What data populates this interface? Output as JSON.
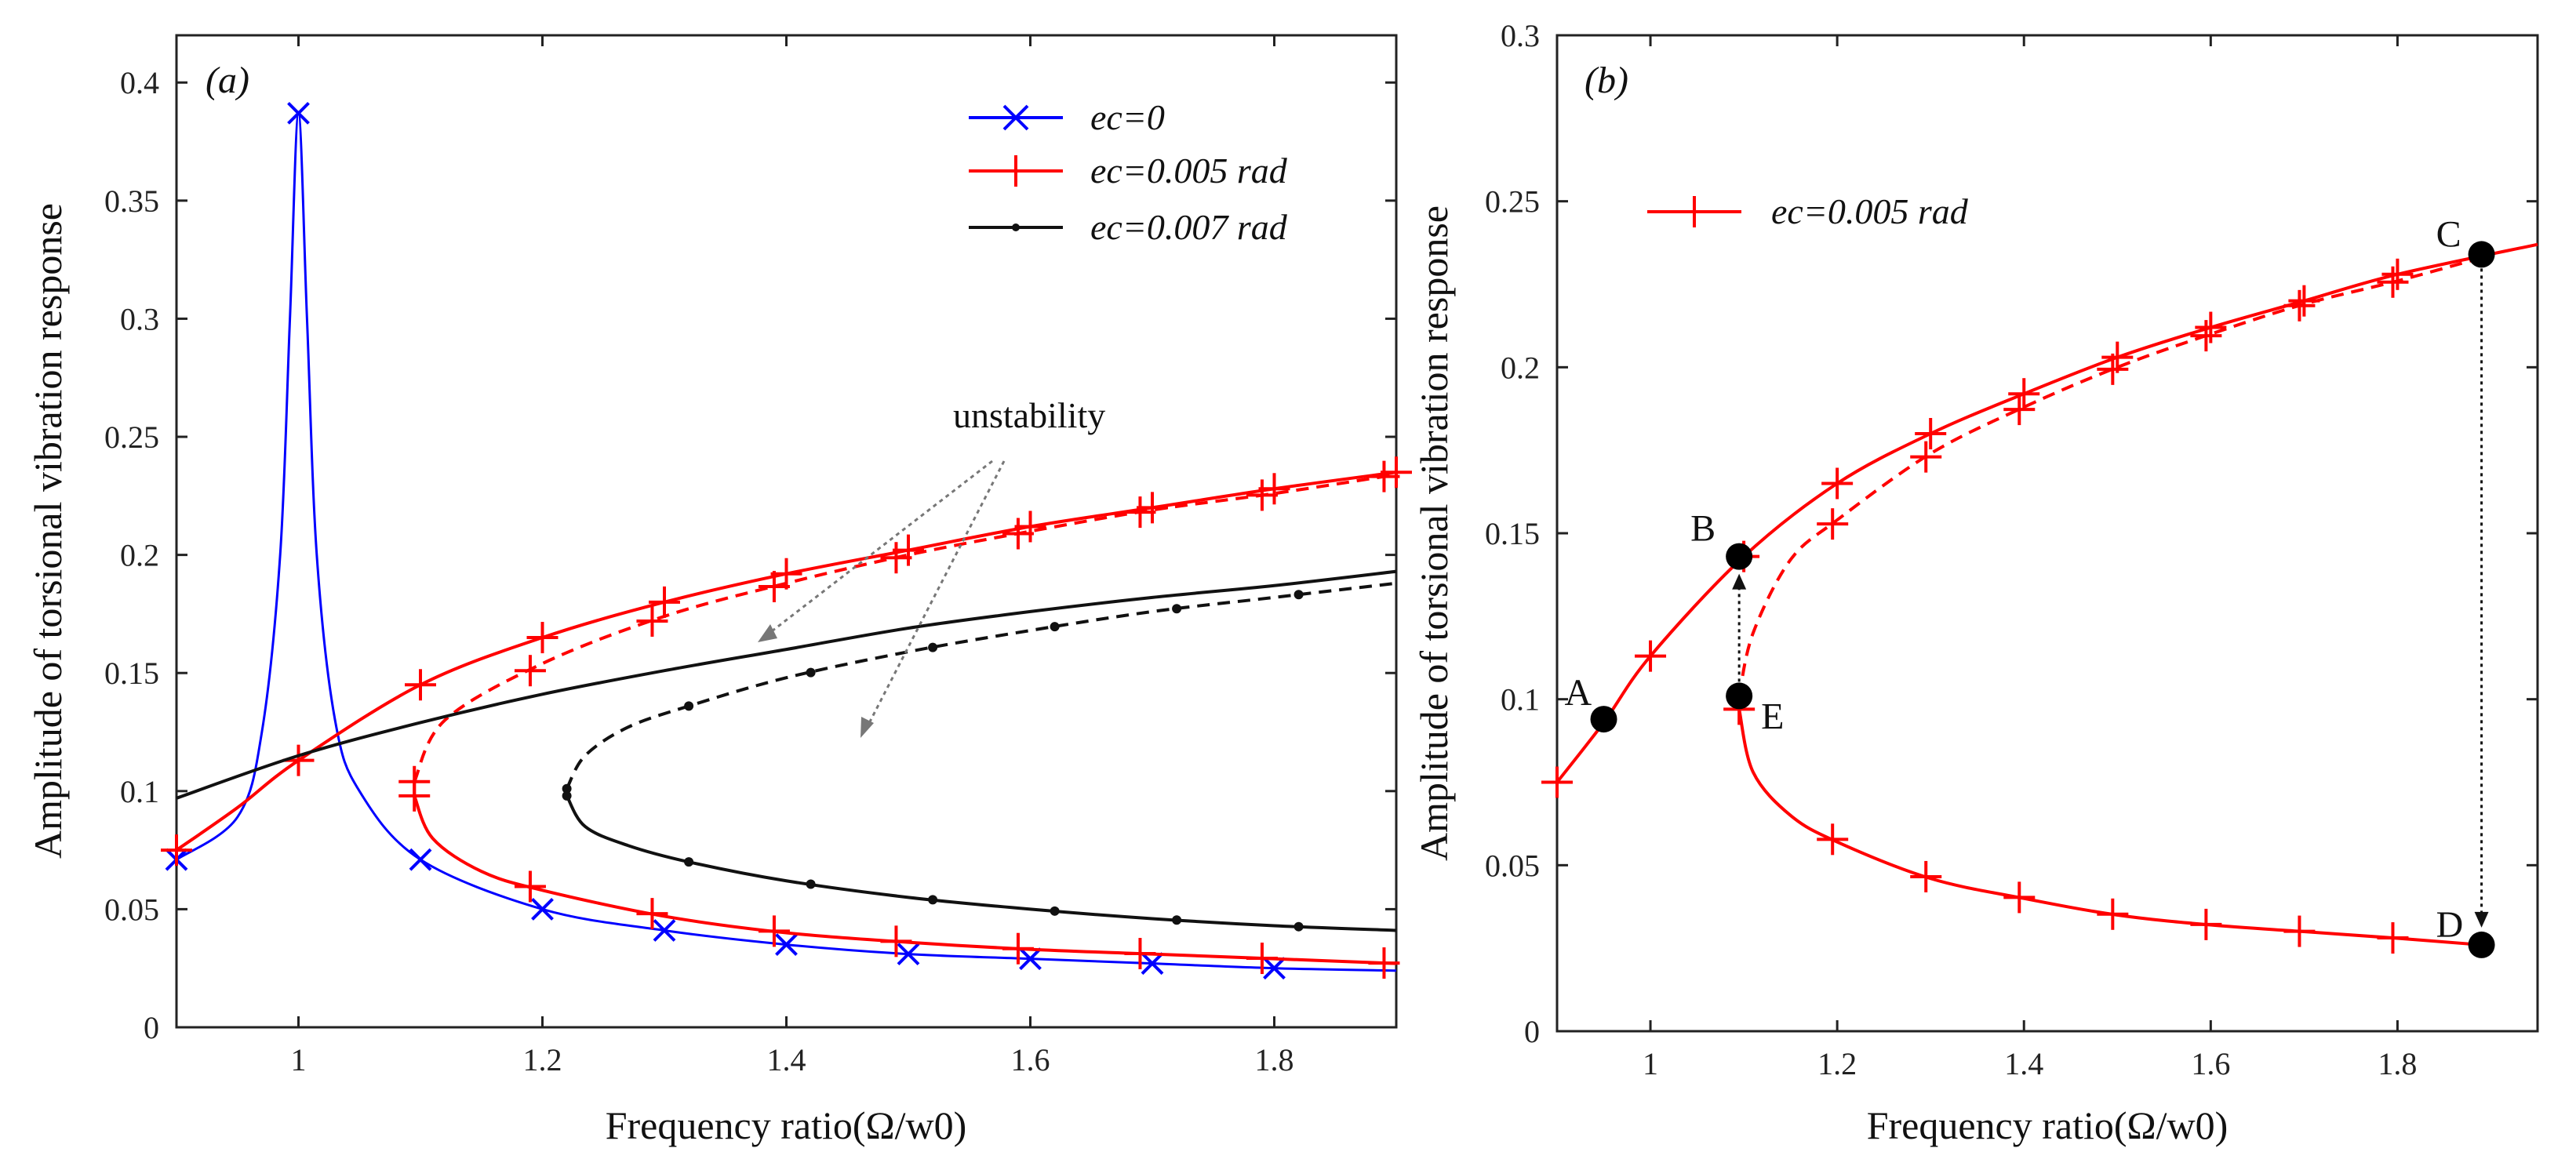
{
  "chart_data": [
    {
      "panel": "(a)",
      "type": "line",
      "xlabel": "Frequency ratio(Ω/w0)",
      "ylabel": "Amplitude of torsional vibration response",
      "xlim": [
        0.9,
        1.9
      ],
      "ylim": [
        0,
        0.42
      ],
      "xticks": [
        1,
        1.2,
        1.4,
        1.6,
        1.8
      ],
      "xtick_labels": [
        "1",
        "1.2",
        "1.4",
        "1.6",
        "1.8"
      ],
      "yticks": [
        0,
        0.05,
        0.1,
        0.15,
        0.2,
        0.25,
        0.3,
        0.35,
        0.4
      ],
      "ytick_labels": [
        "0",
        "0.05",
        "0.1",
        "0.15",
        "0.2",
        "0.25",
        "0.3",
        "0.35",
        "0.4"
      ],
      "legend_position": "top-right",
      "series": [
        {
          "name": "ec=0",
          "color": "#0000ff",
          "marker": "x",
          "x": [
            0.9,
            0.95,
            0.97,
            0.985,
            0.993,
            1.0,
            1.007,
            1.015,
            1.03,
            1.05,
            1.1,
            1.2,
            1.3,
            1.4,
            1.5,
            1.6,
            1.7,
            1.8,
            1.9
          ],
          "y": [
            0.071,
            0.089,
            0.125,
            0.2,
            0.3,
            0.387,
            0.3,
            0.2,
            0.13,
            0.1,
            0.071,
            0.05,
            0.041,
            0.035,
            0.031,
            0.029,
            0.027,
            0.025,
            0.024
          ],
          "marker_x": [
            0.9,
            1.0,
            1.1,
            1.2,
            1.3,
            1.4,
            1.5,
            1.6,
            1.7,
            1.8
          ]
        },
        {
          "name": "ec=0.005 rad",
          "color": "#ff0000",
          "marker": "+",
          "upper_x": [
            0.9,
            0.95,
            1.0,
            1.1,
            1.2,
            1.3,
            1.4,
            1.5,
            1.6,
            1.7,
            1.8,
            1.9
          ],
          "upper_y": [
            0.075,
            0.093,
            0.113,
            0.145,
            0.165,
            0.18,
            0.192,
            0.202,
            0.212,
            0.22,
            0.228,
            0.235
          ],
          "dashed_x": [
            1.095,
            1.12,
            1.2,
            1.3,
            1.4,
            1.5,
            1.6,
            1.7,
            1.8,
            1.9
          ],
          "dashed_y": [
            0.104,
            0.13,
            0.154,
            0.174,
            0.188,
            0.2,
            0.21,
            0.219,
            0.226,
            0.234
          ],
          "lower_x": [
            1.095,
            1.11,
            1.15,
            1.2,
            1.3,
            1.4,
            1.5,
            1.6,
            1.7,
            1.8,
            1.9
          ],
          "lower_y": [
            0.098,
            0.08,
            0.066,
            0.058,
            0.047,
            0.04,
            0.036,
            0.033,
            0.031,
            0.029,
            0.027
          ],
          "marker_x_upper": [
            0.9,
            1.0,
            1.1,
            1.2,
            1.3,
            1.4,
            1.5,
            1.6,
            1.7,
            1.8,
            1.9
          ],
          "marker_x_dashed": [
            1.095,
            1.19,
            1.29,
            1.39,
            1.49,
            1.59,
            1.69,
            1.79,
            1.89
          ],
          "marker_x_lower": [
            1.095,
            1.19,
            1.29,
            1.39,
            1.49,
            1.59,
            1.69,
            1.79,
            1.89
          ]
        },
        {
          "name": "ec=0.007 rad",
          "color": "#111111",
          "marker": ".",
          "upper_x": [
            0.9,
            1.0,
            1.1,
            1.2,
            1.3,
            1.4,
            1.5,
            1.6,
            1.7,
            1.8,
            1.9
          ],
          "upper_y": [
            0.097,
            0.115,
            0.129,
            0.141,
            0.151,
            0.16,
            0.169,
            0.176,
            0.182,
            0.187,
            0.193
          ],
          "dashed_x": [
            1.22,
            1.235,
            1.27,
            1.32,
            1.4,
            1.5,
            1.6,
            1.7,
            1.8,
            1.9
          ],
          "dashed_y": [
            0.101,
            0.115,
            0.127,
            0.136,
            0.148,
            0.159,
            0.168,
            0.176,
            0.182,
            0.188
          ],
          "lower_x": [
            1.22,
            1.235,
            1.27,
            1.32,
            1.4,
            1.5,
            1.6,
            1.7,
            1.8,
            1.9
          ],
          "lower_y": [
            0.098,
            0.085,
            0.077,
            0.07,
            0.062,
            0.055,
            0.05,
            0.046,
            0.043,
            0.041
          ],
          "marker_x": [
            1.22,
            1.32,
            1.42,
            1.52,
            1.62,
            1.72,
            1.82
          ]
        }
      ],
      "annotations": [
        {
          "text": "unstability",
          "x": 1.68,
          "y": 0.248
        },
        {
          "text": "(a)",
          "x": 0.93,
          "y": 0.4
        }
      ]
    },
    {
      "panel": "(b)",
      "type": "line",
      "xlabel": "Frequency ratio(Ω/w0)",
      "ylabel": "Amplitude of torsional vibration response",
      "xlim": [
        0.9,
        1.95
      ],
      "ylim": [
        0,
        0.3
      ],
      "xticks": [
        1,
        1.2,
        1.4,
        1.6,
        1.8
      ],
      "xtick_labels": [
        "1",
        "1.2",
        "1.4",
        "1.6",
        "1.8"
      ],
      "yticks": [
        0,
        0.05,
        0.1,
        0.15,
        0.2,
        0.25,
        0.3
      ],
      "ytick_labels": [
        "0",
        "0.05",
        "0.1",
        "0.15",
        "0.2",
        "0.25",
        "0.3"
      ],
      "legend_position": "top-left",
      "series": [
        {
          "name": "ec=0.005 rad",
          "color": "#ff0000",
          "marker": "+",
          "upper_x": [
            0.9,
            0.95,
            1.0,
            1.1,
            1.2,
            1.3,
            1.4,
            1.5,
            1.6,
            1.7,
            1.8,
            1.95
          ],
          "upper_y": [
            0.075,
            0.093,
            0.113,
            0.143,
            0.165,
            0.18,
            0.192,
            0.203,
            0.212,
            0.22,
            0.228,
            0.237
          ],
          "dashed_x": [
            1.095,
            1.11,
            1.15,
            1.2,
            1.3,
            1.4,
            1.5,
            1.6,
            1.7,
            1.8,
            1.89
          ],
          "dashed_y": [
            0.101,
            0.12,
            0.142,
            0.154,
            0.174,
            0.188,
            0.2,
            0.21,
            0.219,
            0.226,
            0.233
          ],
          "lower_x": [
            1.095,
            1.11,
            1.15,
            1.2,
            1.3,
            1.4,
            1.5,
            1.6,
            1.7,
            1.8,
            1.89
          ],
          "lower_y": [
            0.097,
            0.078,
            0.065,
            0.057,
            0.046,
            0.04,
            0.035,
            0.032,
            0.03,
            0.028,
            0.026
          ],
          "marker_x_upper": [
            0.9,
            1.0,
            1.1,
            1.2,
            1.3,
            1.4,
            1.5,
            1.6,
            1.7,
            1.8
          ],
          "marker_x_dashed": [
            1.195,
            1.295,
            1.395,
            1.495,
            1.595,
            1.695,
            1.795
          ],
          "marker_x_lower": [
            1.095,
            1.195,
            1.295,
            1.395,
            1.495,
            1.595,
            1.695,
            1.795
          ]
        }
      ],
      "points": [
        {
          "label": "A",
          "x": 0.95,
          "y": 0.094
        },
        {
          "label": "B",
          "x": 1.095,
          "y": 0.143
        },
        {
          "label": "C",
          "x": 1.89,
          "y": 0.234
        },
        {
          "label": "D",
          "x": 1.89,
          "y": 0.026
        },
        {
          "label": "E",
          "x": 1.095,
          "y": 0.101
        }
      ],
      "annotations": [
        {
          "text": "(b)",
          "x": 0.95,
          "y": 0.29
        }
      ]
    }
  ]
}
